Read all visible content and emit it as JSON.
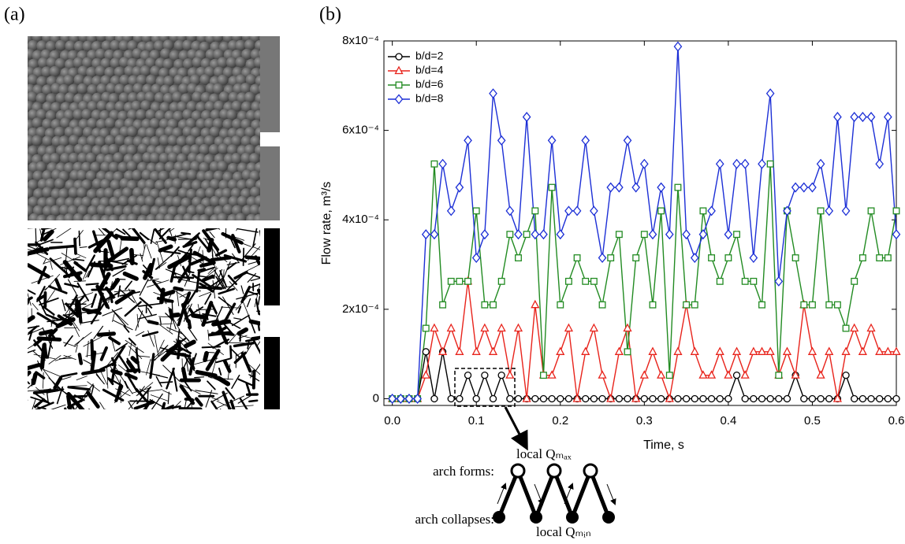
{
  "panel_labels": [
    "(a)",
    "(b)"
  ],
  "chart_data": {
    "type": "line",
    "xlabel": "Time, s",
    "ylabel": "Flow rate, m³/s",
    "x": [
      0,
      0.01,
      0.02,
      0.03,
      0.04,
      0.05,
      0.06,
      0.07,
      0.08,
      0.09,
      0.1,
      0.11,
      0.12,
      0.13,
      0.14,
      0.15,
      0.16,
      0.17,
      0.18,
      0.19,
      0.2,
      0.21,
      0.22,
      0.23,
      0.24,
      0.25,
      0.26,
      0.27,
      0.28,
      0.29,
      0.3,
      0.31,
      0.32,
      0.33,
      0.34,
      0.35,
      0.36,
      0.37,
      0.38,
      0.39,
      0.4,
      0.41,
      0.42,
      0.43,
      0.44,
      0.45,
      0.46,
      0.47,
      0.48,
      0.49,
      0.5,
      0.51,
      0.52,
      0.53,
      0.54,
      0.55,
      0.56,
      0.57,
      0.58,
      0.59,
      0.6
    ],
    "xlim": [
      -0.01,
      0.6
    ],
    "xticks": [
      {
        "value": 0,
        "label": "0.0"
      },
      0.1,
      0.2,
      0.3,
      0.4,
      0.5,
      0.6
    ],
    "ylim": [
      -1.5e-05,
      0.0008
    ],
    "yticks": [
      0,
      {
        "value": 0.0002,
        "label": "2x10⁻⁴"
      },
      {
        "value": 0.0004,
        "label": "4x10⁻⁴"
      },
      {
        "value": 0.0006,
        "label": "6x10⁻⁴"
      },
      {
        "value": 0.0008,
        "label": "8x10⁻⁴"
      }
    ],
    "legend": "upper left",
    "series": [
      {
        "name": "b/d=2",
        "color": "#000000",
        "marker": "circle",
        "values": [
          0,
          0,
          0,
          0,
          0.000105,
          0,
          0.000105,
          0,
          0,
          5.25e-05,
          0,
          5.25e-05,
          0,
          5.25e-05,
          0,
          0,
          0,
          0,
          0,
          0,
          0,
          0,
          0,
          0,
          0,
          0,
          0,
          0,
          0,
          0,
          0,
          0,
          0,
          0,
          0,
          0,
          0,
          0,
          0,
          0,
          0,
          5.25e-05,
          0,
          0,
          0,
          0,
          0,
          0,
          5.25e-05,
          0,
          0,
          0,
          0,
          0,
          5.25e-05,
          0,
          0,
          0,
          0,
          0,
          0
        ]
      },
      {
        "name": "b/d=4",
        "color": "#e8231b",
        "marker": "triangle",
        "values": [
          0,
          0,
          0,
          0,
          5.25e-05,
          0.0001575,
          0.000105,
          0.0001575,
          0.000105,
          0.0002625,
          0.000105,
          0.0001575,
          0.000105,
          0.0001575,
          5.25e-05,
          0.0001575,
          0,
          0.00021,
          5.25e-05,
          5.25e-05,
          0.000105,
          0.0001575,
          0,
          0.000105,
          0.0001575,
          5.25e-05,
          0,
          0.000105,
          0.0001575,
          0,
          5.25e-05,
          0.000105,
          5.25e-05,
          0,
          0.000105,
          0.00021,
          0.000105,
          5.25e-05,
          5.25e-05,
          0.000105,
          5.25e-05,
          0.000105,
          5.25e-05,
          0.000105,
          0.000105,
          0.000105,
          5.25e-05,
          0.000105,
          5.25e-05,
          0.00021,
          0.000105,
          5.25e-05,
          0.000105,
          0,
          0.000105,
          0.0001575,
          0.000105,
          0.0001575,
          0.000105,
          0.000105,
          0.000105
        ]
      },
      {
        "name": "b/d=6",
        "color": "#228b22",
        "marker": "square",
        "values": [
          0,
          0,
          0,
          0,
          0.0001575,
          0.000525,
          0.00021,
          0.0002625,
          0.0002625,
          0.0002625,
          0.00042,
          0.00021,
          0.00021,
          0.0002625,
          0.0003675,
          0.000315,
          0.0003675,
          0.00042,
          5.25e-05,
          0.0004725,
          0.00021,
          0.0002625,
          0.000315,
          0.0002625,
          0.0002625,
          0.00021,
          0.000315,
          0.0003675,
          0.000105,
          0.000315,
          0.0003675,
          0.00021,
          0.00042,
          5.25e-05,
          0.0004725,
          0.00021,
          0.00021,
          0.00042,
          0.000315,
          0.0002625,
          0.000315,
          0.0003675,
          0.0002625,
          0.0002625,
          0.00021,
          0.000525,
          5.25e-05,
          0.00042,
          0.000315,
          0.00021,
          0.00021,
          0.00042,
          0.00021,
          0.00021,
          0.0001575,
          0.0002625,
          0.000315,
          0.00042,
          0.000315,
          0.000315,
          0.00042
        ]
      },
      {
        "name": "b/d=8",
        "color": "#1c2fd6",
        "marker": "diamond",
        "values": [
          0,
          0,
          0,
          0,
          0.0003675,
          0.0003675,
          0.000525,
          0.00042,
          0.0004725,
          0.0005775,
          0.000315,
          0.0003675,
          0.0006825,
          0.0005775,
          0.00042,
          0.0003675,
          0.00063,
          0.0003675,
          0.0003675,
          0.0005775,
          0.0003675,
          0.00042,
          0.00042,
          0.0005775,
          0.00042,
          0.000315,
          0.0004725,
          0.0004725,
          0.0005775,
          0.0004725,
          0.000525,
          0.0003675,
          0.0004725,
          0.0003675,
          0.0007875,
          0.0003675,
          0.000315,
          0.0003675,
          0.00042,
          0.000525,
          0.0003675,
          0.000525,
          0.000525,
          0.000315,
          0.000525,
          0.0006825,
          0.0002625,
          0.00042,
          0.0004725,
          0.0004725,
          0.0004725,
          0.000525,
          0.00042,
          0.00063,
          0.00042,
          0.00063,
          0.00063,
          0.00063,
          0.000525,
          0.00063,
          0.0003675
        ]
      }
    ]
  },
  "inset": {
    "arch_forms": "arch forms:",
    "arch_collapses": "arch collapses:",
    "local_max": "local Qₘₐₓ",
    "local_min": "local Qₘᵢₙ"
  }
}
